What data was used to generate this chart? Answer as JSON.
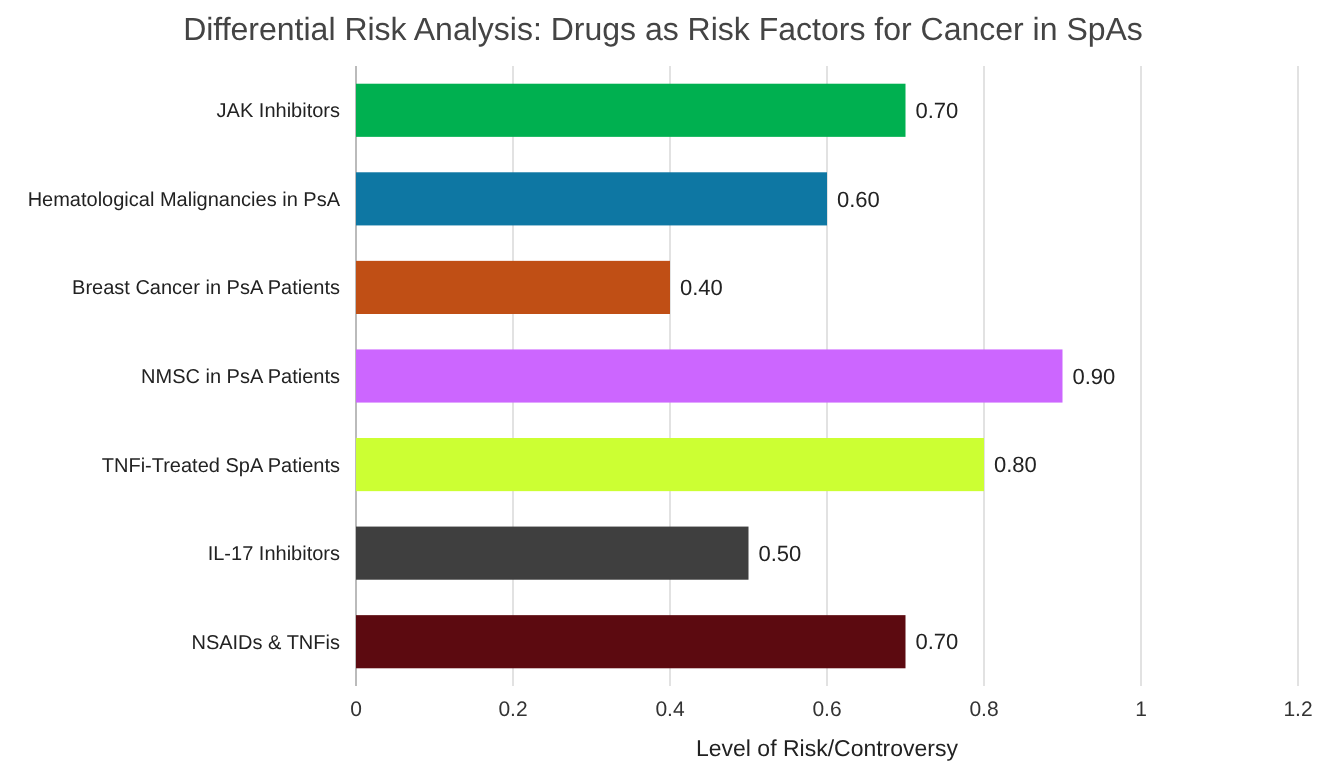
{
  "chart_data": {
    "type": "bar",
    "orientation": "horizontal",
    "title": "Differential Risk Analysis: Drugs as Risk Factors for Cancer in SpAs",
    "xlabel": "Level of Risk/Controversy",
    "categories": [
      "JAK Inhibitors",
      "Hematological Malignancies in PsA",
      "Breast Cancer in PsA Patients",
      "NMSC in PsA Patients",
      "TNFi-Treated SpA Patients",
      "IL-17 Inhibitors",
      "NSAIDs & TNFis"
    ],
    "values": [
      0.7,
      0.6,
      0.4,
      0.9,
      0.8,
      0.5,
      0.7
    ],
    "colors": [
      "#00b050",
      "#0e77a3",
      "#c04f15",
      "#cc66ff",
      "#ccff33",
      "#3f3f3f",
      "#5c0a10"
    ],
    "value_labels": [
      "0.70",
      "0.60",
      "0.40",
      "0.90",
      "0.80",
      "0.50",
      "0.70"
    ],
    "xlim": [
      0,
      1.2
    ],
    "xticks": [
      0,
      0.2,
      0.4,
      0.6,
      0.8,
      1,
      1.2
    ],
    "grid": "x"
  }
}
